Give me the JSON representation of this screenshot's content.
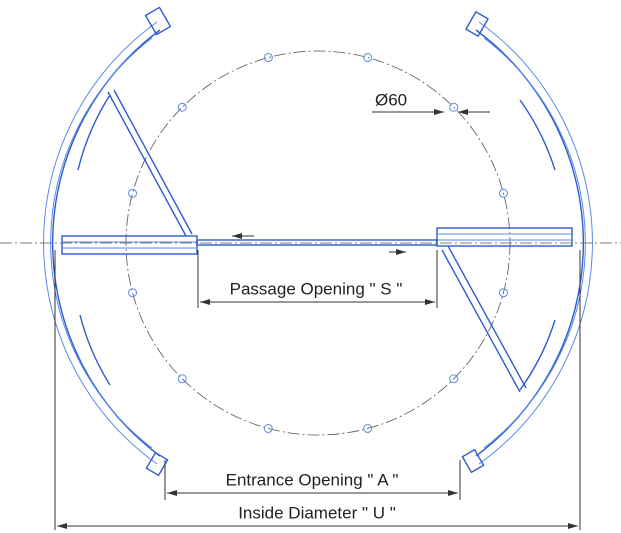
{
  "dimensions": {
    "hole": "Ø60",
    "passage": "Passage Opening \" S \"",
    "entrance": "Entrance Opening \" A \"",
    "inside": "Inside Diameter  \" U \""
  }
}
